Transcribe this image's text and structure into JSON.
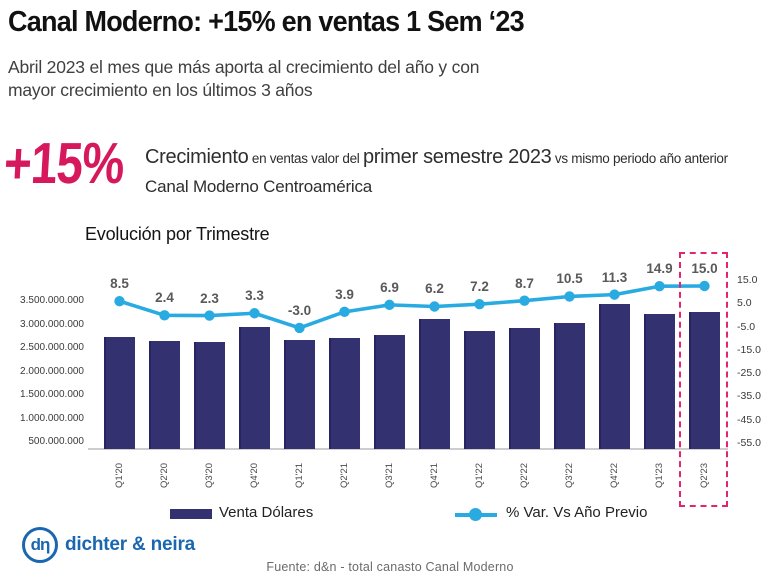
{
  "header": {
    "title": "Canal Moderno: +15% en ventas 1 Sem ‘23",
    "subtitle_line1": "Abril 2023 el mes que más aporta al crecimiento del año y con",
    "subtitle_line2": "mayor crecimiento en los últimos 3 años"
  },
  "highlight": {
    "big_value": "+15%",
    "desc_large_1": "Crecimiento",
    "desc_small_1": " en ventas valor del ",
    "desc_large_2": "primer semestre 2023",
    "desc_small_2": " vs mismo periodo año anterior",
    "desc_line2": "Canal Moderno Centroamérica"
  },
  "chart_data": {
    "type": "bar+line",
    "title": "Evolución por Trimestre",
    "categories": [
      "Q1'20",
      "Q2'20",
      "Q3'20",
      "Q4'20",
      "Q1'21",
      "Q2'21",
      "Q3'21",
      "Q4'21",
      "Q1'22",
      "Q2'22",
      "Q3'22",
      "Q4'22",
      "Q1'23",
      "Q2'23"
    ],
    "series": [
      {
        "name": "Venta Dólares",
        "type": "bar",
        "axis": "left",
        "color": "#333170",
        "values": [
          2750000000,
          2660000000,
          2630000000,
          2960000000,
          2680000000,
          2720000000,
          2790000000,
          3130000000,
          2860000000,
          2940000000,
          3050000000,
          3450000000,
          3240000000,
          3280000000
        ]
      },
      {
        "name": "% Var. Vs Año Previo",
        "type": "line",
        "axis": "right",
        "color": "#29ABE2",
        "values": [
          8.5,
          2.4,
          2.3,
          3.3,
          -3.0,
          3.9,
          6.9,
          6.2,
          7.2,
          8.7,
          10.5,
          11.3,
          14.9,
          15.0
        ]
      }
    ],
    "left_axis": {
      "tick_labels": [
        "3.500.000.000",
        "3.000.000.000",
        "2.500.000.000",
        "2.000.000.000",
        "1.500.000.000",
        "1.000.000.000",
        "500.000.000"
      ],
      "min": 370000000
    },
    "right_axis": {
      "tick_labels": [
        "15.0",
        "5.0",
        "-5.0",
        "-15.0",
        "-25.0",
        "-35.0",
        "-45.0",
        "-55.0"
      ],
      "max": 15,
      "min": -55
    },
    "grid": false,
    "legend_position": "bottom",
    "highlight_category": "Q2'23",
    "highlight_color": "#E3256D"
  },
  "legend": {
    "bar_label": "Venta Dólares",
    "line_label": "% Var. Vs Año Previo"
  },
  "logo": {
    "mark": "dη",
    "name": "dichter & neira"
  },
  "footer": {
    "source": "Fuente: d&n - total canasto Canal Moderno"
  },
  "colors": {
    "accent_pink": "#D6195C",
    "bar_navy": "#333170",
    "line_cyan": "#29ABE2",
    "logo_blue": "#1A67B0"
  }
}
